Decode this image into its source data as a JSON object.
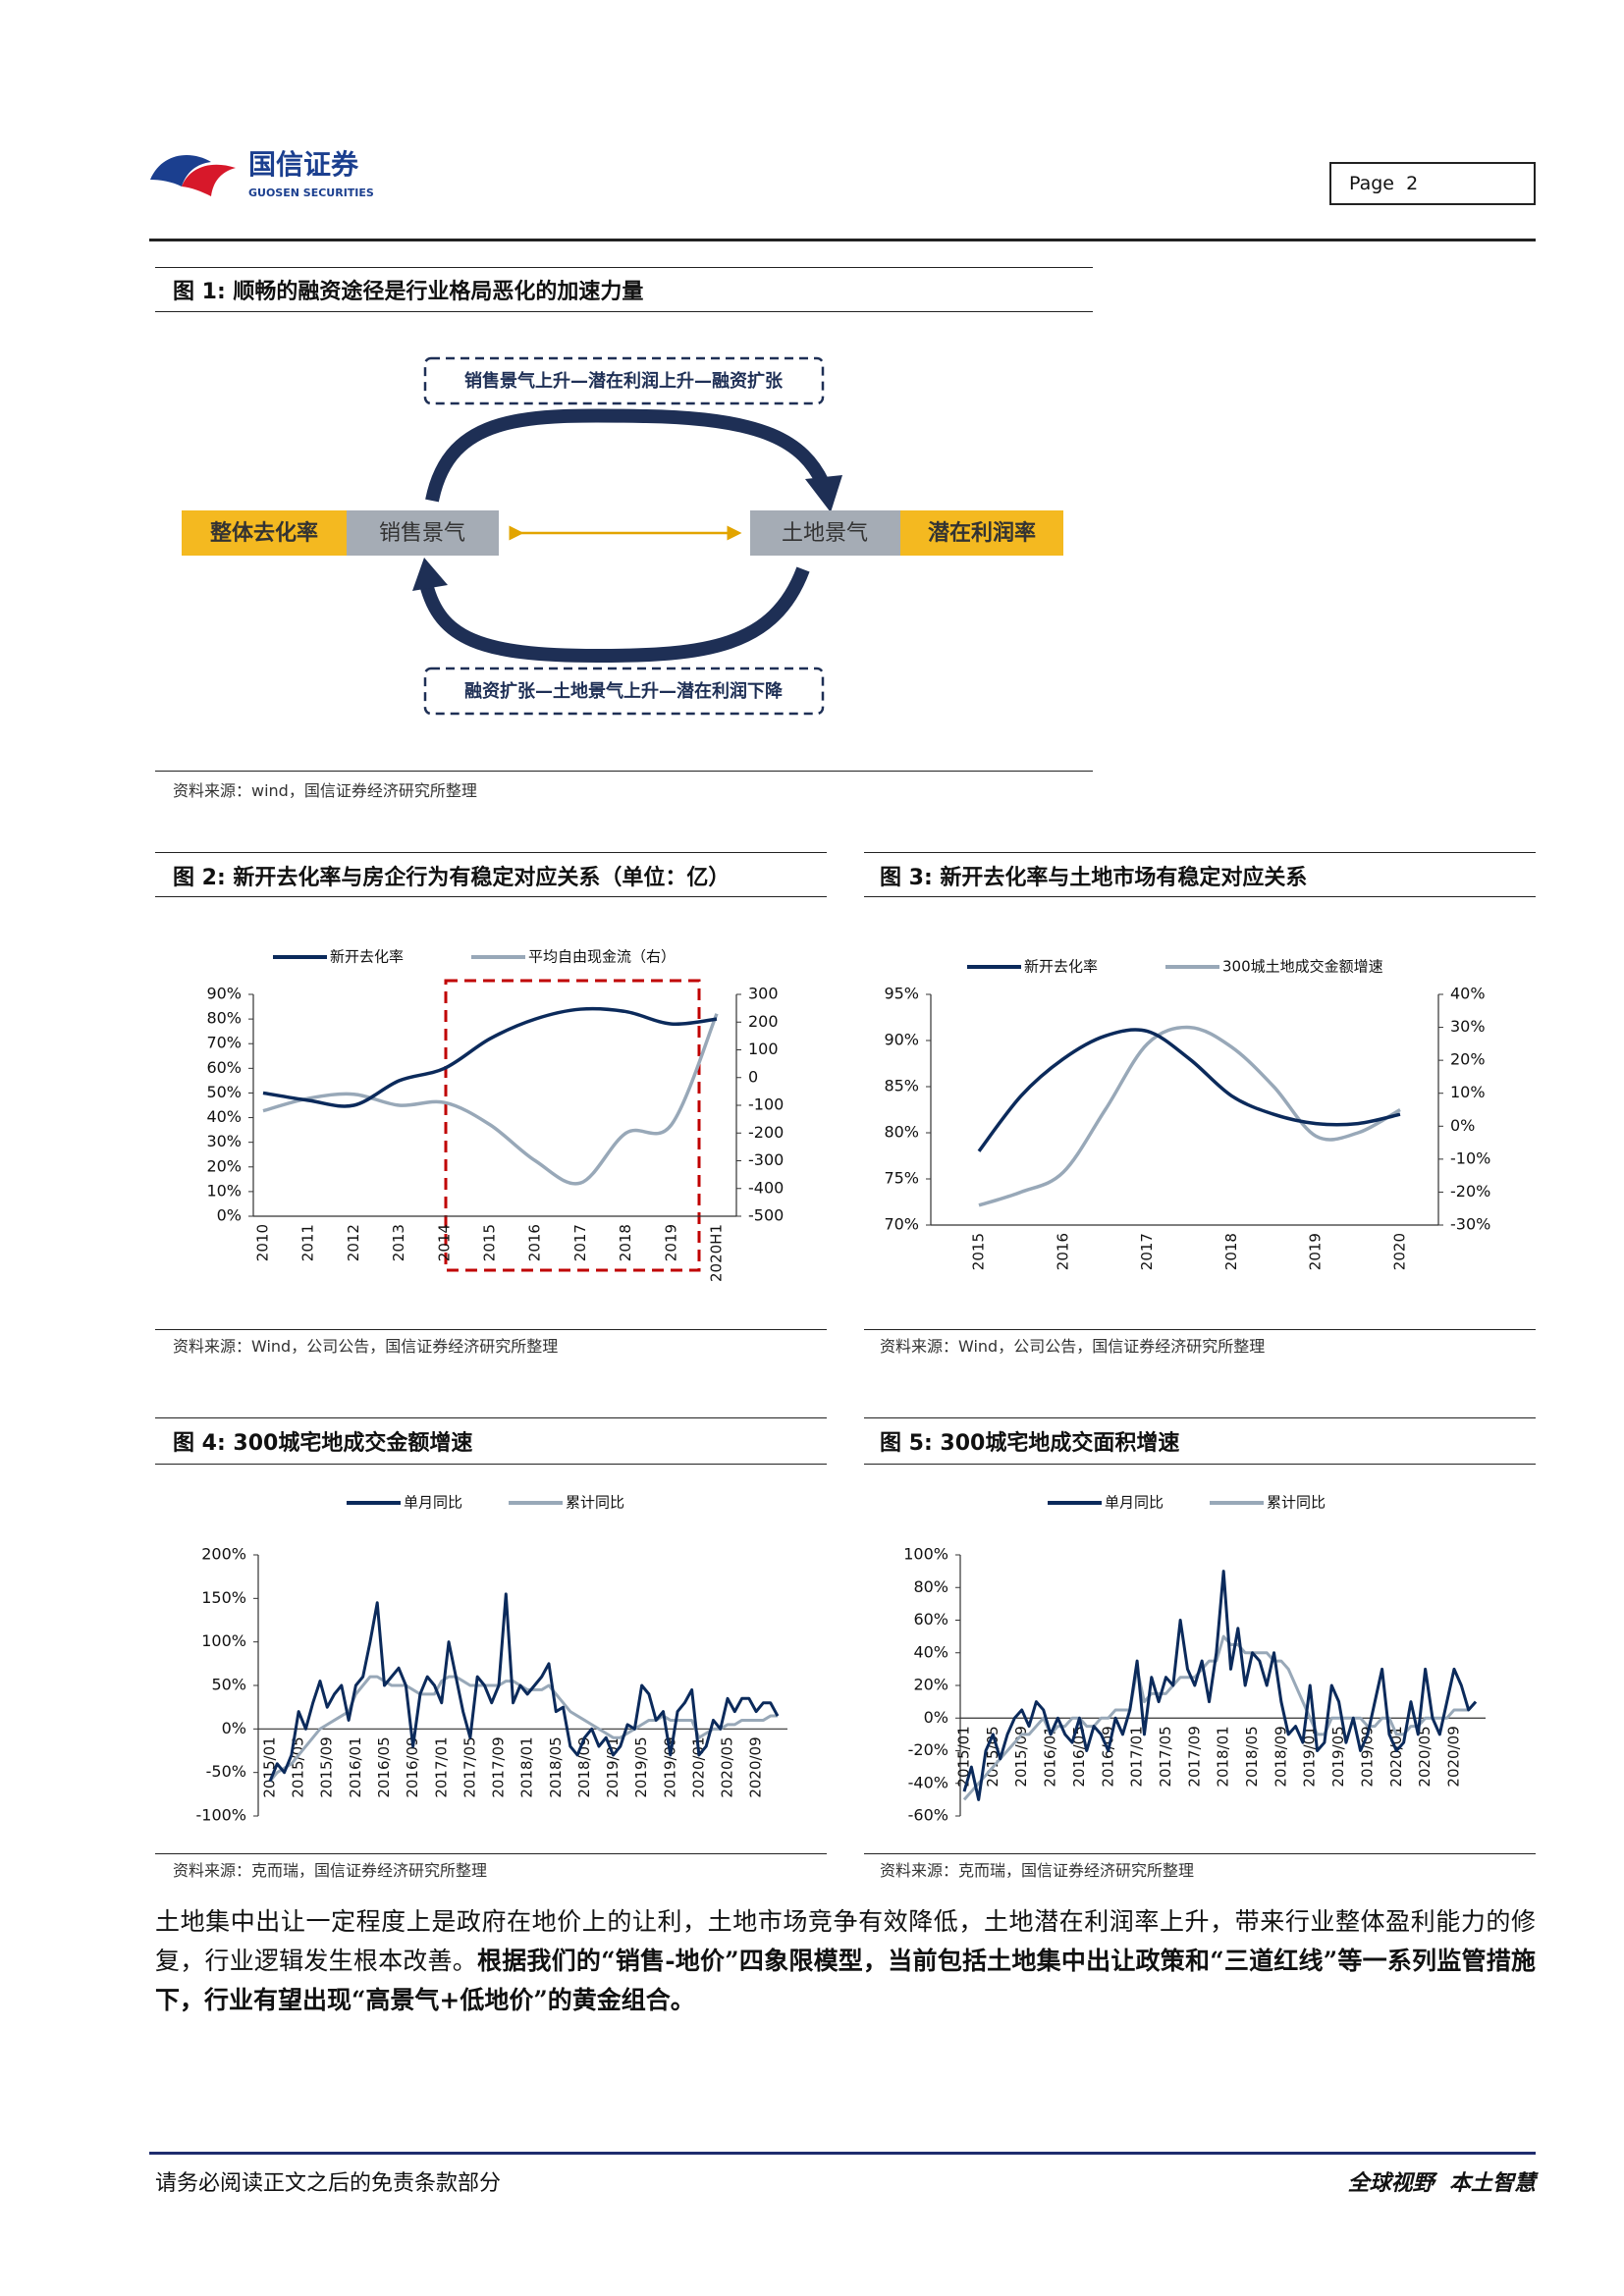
{
  "header": {
    "logo_cn": "国信证券",
    "logo_en": "GUOSEN SECURITIES",
    "page": "Page  2"
  },
  "figure1": {
    "title": "图 1: 顺畅的融资途径是行业格局恶化的加速力量",
    "top_path": "销售景气上升—潜在利润上升—融资扩张",
    "bottom_path": "融资扩张—土地景气上升—潜在利润下降",
    "left_outer": "整体去化率",
    "left_inner": "销售景气",
    "right_inner": "土地景气",
    "right_outer": "潜在利润率",
    "source": "资料来源：wind，国信证券经济研究所整理"
  },
  "chart_data": [
    {
      "type": "line",
      "title": "图 2: 新开去化率与房企行为有稳定对应关系（单位：亿）",
      "source": "资料来源：Wind，公司公告，国信证券经济研究所整理",
      "categories": [
        "2010",
        "2011",
        "2012",
        "2013",
        "2014",
        "2015",
        "2016",
        "2017",
        "2018",
        "2019",
        "2020H1"
      ],
      "series": [
        {
          "name": "新开去化率",
          "color": "#0b2a5b",
          "values": [
            50,
            47,
            45,
            55,
            60,
            72,
            80,
            84,
            83,
            78,
            80
          ]
        },
        {
          "name": "平均自由现金流（右）",
          "color": "#98a8b8",
          "axis": "y2",
          "values": [
            -120,
            -75,
            -60,
            -100,
            -90,
            -170,
            -300,
            -380,
            -200,
            -170,
            230
          ]
        }
      ],
      "ylim": [
        0,
        90
      ],
      "yticks": [
        {
          "value": 0,
          "label": "0%"
        },
        {
          "value": 10,
          "label": "10%"
        },
        {
          "value": 20,
          "label": "20%"
        },
        {
          "value": 30,
          "label": "30%"
        },
        {
          "value": 40,
          "label": "40%"
        },
        {
          "value": 50,
          "label": "50%"
        },
        {
          "value": 60,
          "label": "60%"
        },
        {
          "value": 70,
          "label": "70%"
        },
        {
          "value": 80,
          "label": "80%"
        },
        {
          "value": 90,
          "label": "90%"
        }
      ],
      "y2lim": [
        -500,
        300
      ],
      "y2ticks": [
        -500,
        -400,
        -300,
        -200,
        -100,
        0,
        100,
        200,
        300
      ]
    },
    {
      "type": "line",
      "title": "图 3: 新开去化率与土地市场有稳定对应关系",
      "source": "资料来源：Wind，公司公告，国信证券经济研究所整理",
      "categories": [
        "2015",
        null,
        "2016",
        null,
        "2017",
        null,
        "2018",
        null,
        "2019",
        null,
        "2020"
      ],
      "series": [
        {
          "name": "新开去化率",
          "color": "#0b2a5b",
          "values": [
            78,
            84,
            88,
            90.5,
            91,
            88,
            84,
            82,
            81,
            81,
            82
          ]
        },
        {
          "name": "300城土地成交金额增速",
          "color": "#98a8b8",
          "axis": "y2",
          "values": [
            -24,
            -20,
            -14,
            5,
            25,
            30,
            24,
            12,
            -3,
            -2,
            5
          ]
        }
      ],
      "ylim": [
        70,
        95
      ],
      "yticks": [
        {
          "value": 70,
          "label": "70%"
        },
        {
          "value": 75,
          "label": "75%"
        },
        {
          "value": 80,
          "label": "80%"
        },
        {
          "value": 85,
          "label": "85%"
        },
        {
          "value": 90,
          "label": "90%"
        },
        {
          "value": 95,
          "label": "95%"
        }
      ],
      "y2lim": [
        -30,
        40
      ],
      "y2ticks": [
        {
          "value": -30,
          "label": "-30%"
        },
        {
          "value": -20,
          "label": "-20%"
        },
        {
          "value": -10,
          "label": "-10%"
        },
        {
          "value": 0,
          "label": "0%"
        },
        {
          "value": 10,
          "label": "10%"
        },
        {
          "value": 20,
          "label": "20%"
        },
        {
          "value": 30,
          "label": "30%"
        },
        {
          "value": 40,
          "label": "40%"
        }
      ]
    },
    {
      "type": "line",
      "title": "图 4: 300城宅地成交金额增速",
      "source": "资料来源：克而瑞，国信证券经济研究所整理",
      "categories": [
        "2015/01",
        null,
        null,
        null,
        "2015/05",
        null,
        null,
        null,
        "2015/09",
        null,
        null,
        null,
        "2016/01",
        null,
        null,
        null,
        "2016/05",
        null,
        null,
        null,
        "2016/09",
        null,
        null,
        null,
        "2017/01",
        null,
        null,
        null,
        "2017/05",
        null,
        null,
        null,
        "2017/09",
        null,
        null,
        null,
        "2018/01",
        null,
        null,
        null,
        "2018/05",
        null,
        null,
        null,
        "2018/09",
        null,
        null,
        null,
        "2019/01",
        null,
        null,
        null,
        "2019/05",
        null,
        null,
        null,
        "2019/09",
        null,
        null,
        null,
        "2020/01",
        null,
        null,
        null,
        "2020/05",
        null,
        null,
        null,
        "2020/09",
        null,
        null,
        null
      ],
      "series": [
        {
          "name": "单月同比",
          "color": "#0b2a5b",
          "values": [
            -60,
            -40,
            -50,
            -30,
            20,
            0,
            30,
            55,
            25,
            40,
            50,
            10,
            50,
            60,
            100,
            145,
            50,
            60,
            70,
            50,
            -20,
            40,
            60,
            50,
            30,
            100,
            60,
            20,
            -10,
            60,
            50,
            30,
            50,
            155,
            30,
            50,
            40,
            50,
            60,
            75,
            20,
            25,
            -20,
            -30,
            -10,
            0,
            -20,
            -10,
            -30,
            -20,
            5,
            0,
            50,
            40,
            10,
            20,
            -30,
            20,
            30,
            45,
            -30,
            -20,
            10,
            0,
            35,
            20,
            35,
            35,
            20,
            30,
            30,
            15
          ]
        },
        {
          "name": "累计同比",
          "color": "#98a8b8",
          "values": [
            -60,
            -50,
            -45,
            -40,
            -30,
            -20,
            -10,
            0,
            5,
            10,
            15,
            20,
            40,
            50,
            60,
            60,
            55,
            50,
            50,
            50,
            45,
            40,
            40,
            40,
            55,
            60,
            60,
            55,
            50,
            50,
            50,
            50,
            50,
            55,
            55,
            50,
            45,
            45,
            45,
            50,
            40,
            30,
            20,
            15,
            10,
            5,
            0,
            -5,
            -10,
            -10,
            -5,
            0,
            5,
            10,
            10,
            15,
            10,
            10,
            10,
            10,
            -10,
            -5,
            0,
            0,
            5,
            5,
            10,
            10,
            10,
            10,
            15,
            15
          ]
        }
      ],
      "ylim": [
        -100,
        200
      ],
      "yticks": [
        {
          "value": -100,
          "label": "-100%"
        },
        {
          "value": -50,
          "label": "-50%"
        },
        {
          "value": 0,
          "label": "0%"
        },
        {
          "value": 50,
          "label": "50%"
        },
        {
          "value": 100,
          "label": "100%"
        },
        {
          "value": 150,
          "label": "150%"
        },
        {
          "value": 200,
          "label": "200%"
        }
      ]
    },
    {
      "type": "line",
      "title": "图 5: 300城宅地成交面积增速",
      "source": "资料来源：克而瑞，国信证券经济研究所整理",
      "categories": [
        "2015/01",
        null,
        null,
        null,
        "2015/05",
        null,
        null,
        null,
        "2015/09",
        null,
        null,
        null,
        "2016/01",
        null,
        null,
        null,
        "2016/05",
        null,
        null,
        null,
        "2016/09",
        null,
        null,
        null,
        "2017/01",
        null,
        null,
        null,
        "2017/05",
        null,
        null,
        null,
        "2017/09",
        null,
        null,
        null,
        "2018/01",
        null,
        null,
        null,
        "2018/05",
        null,
        null,
        null,
        "2018/09",
        null,
        null,
        null,
        "2019/01",
        null,
        null,
        null,
        "2019/05",
        null,
        null,
        null,
        "2019/09",
        null,
        null,
        null,
        "2020/01",
        null,
        null,
        null,
        "2020/05",
        null,
        null,
        null,
        "2020/09",
        null,
        null,
        null
      ],
      "series": [
        {
          "name": "单月同比",
          "color": "#0b2a5b",
          "values": [
            -45,
            -30,
            -50,
            -20,
            -10,
            -25,
            -10,
            0,
            5,
            -5,
            10,
            5,
            -10,
            0,
            -10,
            -15,
            0,
            -20,
            -5,
            -10,
            -20,
            0,
            -10,
            5,
            35,
            -10,
            25,
            10,
            25,
            20,
            60,
            30,
            20,
            35,
            10,
            40,
            90,
            30,
            55,
            20,
            40,
            35,
            20,
            40,
            10,
            -10,
            -5,
            -15,
            20,
            -20,
            -15,
            20,
            10,
            -15,
            0,
            -20,
            -10,
            10,
            30,
            -10,
            -20,
            -15,
            10,
            -10,
            30,
            0,
            -10,
            10,
            30,
            20,
            5,
            10
          ]
        },
        {
          "name": "累计同比",
          "color": "#98a8b8",
          "values": [
            -50,
            -45,
            -40,
            -35,
            -30,
            -25,
            -20,
            -15,
            -10,
            -10,
            -5,
            0,
            -10,
            -5,
            -5,
            0,
            0,
            -5,
            -5,
            0,
            0,
            5,
            5,
            5,
            30,
            10,
            15,
            15,
            15,
            20,
            25,
            25,
            25,
            30,
            35,
            35,
            50,
            45,
            45,
            40,
            40,
            40,
            40,
            35,
            35,
            30,
            20,
            10,
            0,
            -10,
            -10,
            0,
            0,
            0,
            0,
            0,
            -5,
            -5,
            0,
            0,
            -10,
            -10,
            -5,
            -5,
            0,
            0,
            0,
            0,
            5,
            5,
            5,
            10
          ]
        }
      ],
      "ylim": [
        -60,
        100
      ],
      "yticks": [
        {
          "value": -60,
          "label": "-60%"
        },
        {
          "value": -40,
          "label": "-40%"
        },
        {
          "value": -20,
          "label": "-20%"
        },
        {
          "value": 0,
          "label": "0%"
        },
        {
          "value": 20,
          "label": "20%"
        },
        {
          "value": 40,
          "label": "40%"
        },
        {
          "value": 60,
          "label": "60%"
        },
        {
          "value": 80,
          "label": "80%"
        },
        {
          "value": 100,
          "label": "100%"
        }
      ]
    }
  ],
  "body": {
    "plain": "土地集中出让一定程度上是政府在地价上的让利，土地市场竞争有效降低，土地潜在利润率上升，带来行业整体盈利能力的修复，行业逻辑发生根本改善。",
    "bold": "根据我们的“销售-地价”四象限模型，当前包括土地集中出让政策和“三道红线”等一系列监管措施下，行业有望出现“高景气+低地价”的黄金组合。"
  },
  "footer": {
    "left": "请务必阅读正文之后的免责条款部分",
    "right": "全球视野  本土智慧"
  }
}
